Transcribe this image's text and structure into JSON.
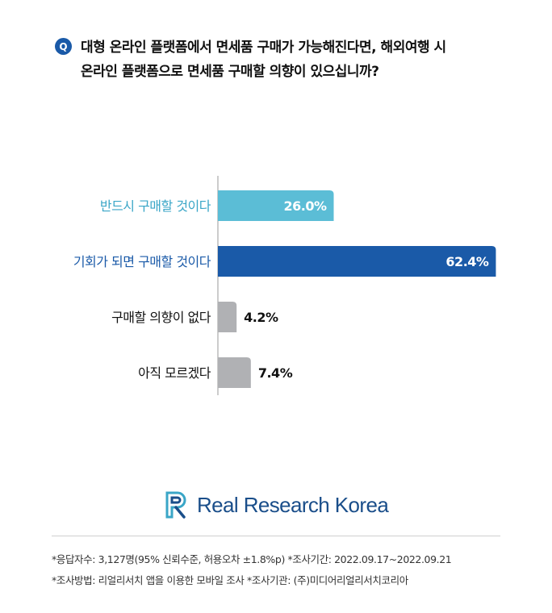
{
  "question": {
    "badge": "Q",
    "line1": "대형 온라인 플랫폼에서 면세품 구매가 가능해진다면, 해외여행 시",
    "line2": "온라인 플랫폼으로 면세품 구매할 의향이 있으십니까?"
  },
  "chart_data": {
    "type": "bar",
    "orientation": "horizontal",
    "categories": [
      "반드시 구매할 것이다",
      "기회가 되면 구매할 것이다",
      "구매할 의향이 없다",
      "아직 모르겠다"
    ],
    "values": [
      26.0,
      62.4,
      4.2,
      7.4
    ],
    "value_labels": [
      "26.0%",
      "62.4%",
      "4.2%",
      "7.4%"
    ],
    "unit": "%",
    "xlim": [
      0,
      100
    ],
    "grid": false,
    "legend": "none",
    "colors": [
      "#5bbdd6",
      "#1a5aa8",
      "#b0b1b4",
      "#b0b1b4"
    ],
    "label_colors": [
      "#3aa6c7",
      "#1a5aa8",
      "#111111",
      "#111111"
    ]
  },
  "logo": {
    "text": "Real Research Korea",
    "color": "#1a4e8a"
  },
  "notes": {
    "line1": "*응답자수: 3,127명(95% 신뢰수준, 허용오차 ±1.8%p) *조사기간: 2022.09.17~2022.09.21",
    "line2": "*조사방법: 리얼리서치 앱을 이용한 모바일 조사 *조사기관: (주)미디어리얼리서치코리아"
  }
}
